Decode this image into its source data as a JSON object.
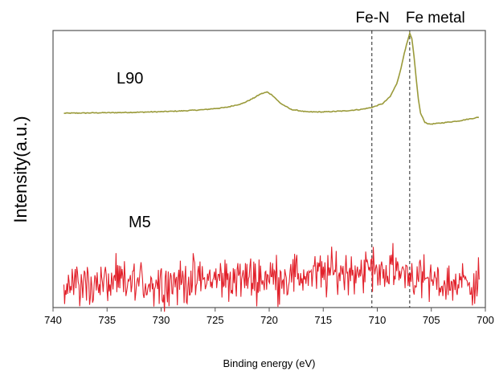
{
  "chart_data": {
    "type": "line",
    "xlabel": "Binding energy (eV)",
    "ylabel": "Intensity(a.u.)",
    "xlim": [
      740,
      700
    ],
    "x_reversed": true,
    "xticks": [
      740,
      735,
      730,
      725,
      720,
      715,
      710,
      705,
      700
    ],
    "grid": false,
    "reference_lines": [
      {
        "label": "Fe-N",
        "x": 710.5,
        "style": "dashed"
      },
      {
        "label": "Fe metal",
        "x": 707.0,
        "style": "dashed"
      }
    ],
    "series": [
      {
        "name": "L90",
        "color": "#9a9a3a",
        "x": [
          739,
          738,
          736,
          734,
          732,
          730,
          728,
          726,
          724,
          722.5,
          721.5,
          720.8,
          720.2,
          719.7,
          719.0,
          718.0,
          716.5,
          715,
          713,
          711.5,
          710.5,
          709.5,
          708.8,
          708.2,
          707.8,
          707.5,
          707.2,
          707.0,
          706.8,
          706.6,
          706.4,
          706.2,
          706.0,
          705.6,
          705.2,
          704.5,
          703.5,
          702.5,
          701.5,
          700.5
        ],
        "values": [
          0.0,
          0.001,
          0.003,
          0.005,
          0.008,
          0.012,
          0.018,
          0.028,
          0.045,
          0.075,
          0.115,
          0.15,
          0.165,
          0.14,
          0.08,
          0.03,
          0.01,
          0.01,
          0.018,
          0.03,
          0.045,
          0.075,
          0.13,
          0.23,
          0.35,
          0.47,
          0.56,
          0.62,
          0.58,
          0.44,
          0.27,
          0.11,
          0.0,
          -0.07,
          -0.085,
          -0.08,
          -0.07,
          -0.06,
          -0.045,
          -0.03
        ]
      },
      {
        "name": "M5",
        "color": "#e2212b",
        "x_range": [
          739,
          700.5
        ],
        "trend": {
          "x": [
            739,
            730,
            725,
            720,
            715,
            711,
            709,
            707.5,
            706,
            704,
            702,
            700.5
          ],
          "values": [
            0.0,
            0.01,
            0.03,
            0.04,
            0.06,
            0.09,
            0.08,
            0.08,
            0.03,
            0.0,
            0.01,
            0.02
          ]
        },
        "noise_amplitude": 0.13
      }
    ]
  }
}
